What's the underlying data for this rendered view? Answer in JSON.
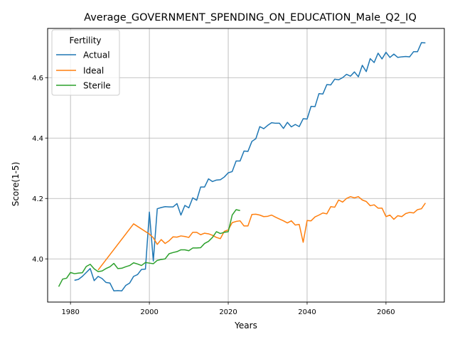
{
  "chart_data": {
    "type": "line",
    "title": "Average_GOVERNMENT_SPENDING_ON_EDUCATION_Male_Q2_IQ",
    "xlabel": "Years",
    "ylabel": "Score(1-5)",
    "xlim": [
      1974.2,
      2074.8
    ],
    "ylim": [
      3.857,
      4.763
    ],
    "xticks": [
      1980,
      2000,
      2020,
      2040,
      2060
    ],
    "yticks": [
      4.0,
      4.2,
      4.4,
      4.6
    ],
    "grid": true,
    "legend": {
      "title": "Fertility",
      "placement": "top-left"
    },
    "series": [
      {
        "name": "Actual",
        "color": "#1f77b4",
        "points": [
          [
            1981,
            3.929
          ],
          [
            1982,
            3.932
          ],
          [
            1983,
            3.942
          ],
          [
            1984,
            3.955
          ],
          [
            1985,
            3.968
          ],
          [
            1986,
            3.928
          ],
          [
            1987,
            3.942
          ],
          [
            1988,
            3.935
          ],
          [
            1989,
            3.922
          ],
          [
            1990,
            3.92
          ],
          [
            1991,
            3.894
          ],
          [
            1992,
            3.895
          ],
          [
            1993,
            3.894
          ],
          [
            1994,
            3.912
          ],
          [
            1995,
            3.92
          ],
          [
            1996,
            3.942
          ],
          [
            1997,
            3.948
          ],
          [
            1998,
            3.965
          ],
          [
            1999,
            3.966
          ],
          [
            2000,
            4.155
          ],
          [
            2001,
            3.993
          ],
          [
            2002,
            4.166
          ],
          [
            2003,
            4.17
          ],
          [
            2004,
            4.173
          ],
          [
            2005,
            4.172
          ],
          [
            2006,
            4.172
          ],
          [
            2007,
            4.183
          ],
          [
            2008,
            4.145
          ],
          [
            2009,
            4.177
          ],
          [
            2010,
            4.169
          ],
          [
            2011,
            4.202
          ],
          [
            2012,
            4.194
          ],
          [
            2013,
            4.238
          ],
          [
            2014,
            4.238
          ],
          [
            2015,
            4.265
          ],
          [
            2016,
            4.256
          ],
          [
            2017,
            4.261
          ],
          [
            2018,
            4.262
          ],
          [
            2019,
            4.271
          ],
          [
            2020,
            4.285
          ],
          [
            2021,
            4.289
          ],
          [
            2022,
            4.324
          ],
          [
            2023,
            4.324
          ],
          [
            2024,
            4.357
          ],
          [
            2025,
            4.356
          ],
          [
            2026,
            4.389
          ],
          [
            2027,
            4.398
          ],
          [
            2028,
            4.438
          ],
          [
            2029,
            4.431
          ],
          [
            2030,
            4.442
          ],
          [
            2031,
            4.451
          ],
          [
            2032,
            4.449
          ],
          [
            2033,
            4.449
          ],
          [
            2034,
            4.432
          ],
          [
            2035,
            4.452
          ],
          [
            2036,
            4.437
          ],
          [
            2037,
            4.445
          ],
          [
            2038,
            4.438
          ],
          [
            2039,
            4.464
          ],
          [
            2040,
            4.463
          ],
          [
            2041,
            4.505
          ],
          [
            2042,
            4.504
          ],
          [
            2043,
            4.547
          ],
          [
            2044,
            4.546
          ],
          [
            2045,
            4.577
          ],
          [
            2046,
            4.576
          ],
          [
            2047,
            4.595
          ],
          [
            2048,
            4.593
          ],
          [
            2049,
            4.6
          ],
          [
            2050,
            4.611
          ],
          [
            2051,
            4.605
          ],
          [
            2052,
            4.619
          ],
          [
            2053,
            4.603
          ],
          [
            2054,
            4.641
          ],
          [
            2055,
            4.62
          ],
          [
            2056,
            4.663
          ],
          [
            2057,
            4.65
          ],
          [
            2058,
            4.681
          ],
          [
            2059,
            4.662
          ],
          [
            2060,
            4.684
          ],
          [
            2061,
            4.667
          ],
          [
            2062,
            4.678
          ],
          [
            2063,
            4.667
          ],
          [
            2064,
            4.669
          ],
          [
            2065,
            4.67
          ],
          [
            2066,
            4.669
          ],
          [
            2067,
            4.686
          ],
          [
            2068,
            4.686
          ],
          [
            2069,
            4.716
          ],
          [
            2070,
            4.715
          ]
        ]
      },
      {
        "name": "Ideal",
        "color": "#ff7f0e",
        "points": [
          [
            1987,
            3.963
          ],
          [
            1996,
            4.116
          ],
          [
            2000,
            4.082
          ],
          [
            2001,
            4.07
          ],
          [
            2002,
            4.048
          ],
          [
            2003,
            4.064
          ],
          [
            2004,
            4.051
          ],
          [
            2005,
            4.06
          ],
          [
            2006,
            4.073
          ],
          [
            2007,
            4.072
          ],
          [
            2008,
            4.076
          ],
          [
            2009,
            4.074
          ],
          [
            2010,
            4.071
          ],
          [
            2011,
            4.088
          ],
          [
            2012,
            4.088
          ],
          [
            2013,
            4.08
          ],
          [
            2014,
            4.085
          ],
          [
            2015,
            4.083
          ],
          [
            2016,
            4.078
          ],
          [
            2017,
            4.071
          ],
          [
            2018,
            4.067
          ],
          [
            2019,
            4.091
          ],
          [
            2020,
            4.096
          ],
          [
            2021,
            4.12
          ],
          [
            2022,
            4.124
          ],
          [
            2023,
            4.126
          ],
          [
            2024,
            4.109
          ],
          [
            2025,
            4.109
          ],
          [
            2026,
            4.147
          ],
          [
            2027,
            4.148
          ],
          [
            2028,
            4.145
          ],
          [
            2029,
            4.14
          ],
          [
            2030,
            4.141
          ],
          [
            2031,
            4.145
          ],
          [
            2032,
            4.138
          ],
          [
            2033,
            4.132
          ],
          [
            2034,
            4.126
          ],
          [
            2035,
            4.119
          ],
          [
            2036,
            4.126
          ],
          [
            2037,
            4.112
          ],
          [
            2038,
            4.114
          ],
          [
            2039,
            4.055
          ],
          [
            2040,
            4.127
          ],
          [
            2041,
            4.126
          ],
          [
            2042,
            4.139
          ],
          [
            2043,
            4.145
          ],
          [
            2044,
            4.152
          ],
          [
            2045,
            4.149
          ],
          [
            2046,
            4.173
          ],
          [
            2047,
            4.171
          ],
          [
            2048,
            4.195
          ],
          [
            2049,
            4.188
          ],
          [
            2050,
            4.2
          ],
          [
            2051,
            4.206
          ],
          [
            2052,
            4.202
          ],
          [
            2053,
            4.206
          ],
          [
            2054,
            4.195
          ],
          [
            2055,
            4.19
          ],
          [
            2056,
            4.176
          ],
          [
            2057,
            4.179
          ],
          [
            2058,
            4.168
          ],
          [
            2059,
            4.168
          ],
          [
            2060,
            4.14
          ],
          [
            2061,
            4.145
          ],
          [
            2062,
            4.131
          ],
          [
            2063,
            4.143
          ],
          [
            2064,
            4.14
          ],
          [
            2065,
            4.15
          ],
          [
            2066,
            4.154
          ],
          [
            2067,
            4.152
          ],
          [
            2068,
            4.163
          ],
          [
            2069,
            4.166
          ],
          [
            2070,
            4.185
          ]
        ]
      },
      {
        "name": "Sterile",
        "color": "#2ca02c",
        "points": [
          [
            1977,
            3.908
          ],
          [
            1978,
            3.933
          ],
          [
            1979,
            3.936
          ],
          [
            1980,
            3.955
          ],
          [
            1981,
            3.951
          ],
          [
            1982,
            3.953
          ],
          [
            1983,
            3.954
          ],
          [
            1984,
            3.975
          ],
          [
            1985,
            3.982
          ],
          [
            1986,
            3.967
          ],
          [
            1987,
            3.958
          ],
          [
            1988,
            3.96
          ],
          [
            1989,
            3.968
          ],
          [
            1990,
            3.974
          ],
          [
            1991,
            3.985
          ],
          [
            1992,
            3.968
          ],
          [
            1993,
            3.969
          ],
          [
            1994,
            3.974
          ],
          [
            1995,
            3.978
          ],
          [
            1996,
            3.987
          ],
          [
            1997,
            3.983
          ],
          [
            1998,
            3.978
          ],
          [
            1999,
            3.988
          ],
          [
            2000,
            3.986
          ],
          [
            2001,
            3.984
          ],
          [
            2002,
            3.995
          ],
          [
            2003,
            3.998
          ],
          [
            2004,
            4.0
          ],
          [
            2005,
            4.017
          ],
          [
            2006,
            4.021
          ],
          [
            2007,
            4.024
          ],
          [
            2008,
            4.03
          ],
          [
            2009,
            4.03
          ],
          [
            2010,
            4.027
          ],
          [
            2011,
            4.036
          ],
          [
            2012,
            4.036
          ],
          [
            2013,
            4.037
          ],
          [
            2014,
            4.051
          ],
          [
            2015,
            4.058
          ],
          [
            2016,
            4.071
          ],
          [
            2017,
            4.09
          ],
          [
            2018,
            4.084
          ],
          [
            2019,
            4.088
          ],
          [
            2020,
            4.09
          ],
          [
            2021,
            4.145
          ],
          [
            2022,
            4.163
          ],
          [
            2023,
            4.16
          ]
        ]
      }
    ]
  }
}
